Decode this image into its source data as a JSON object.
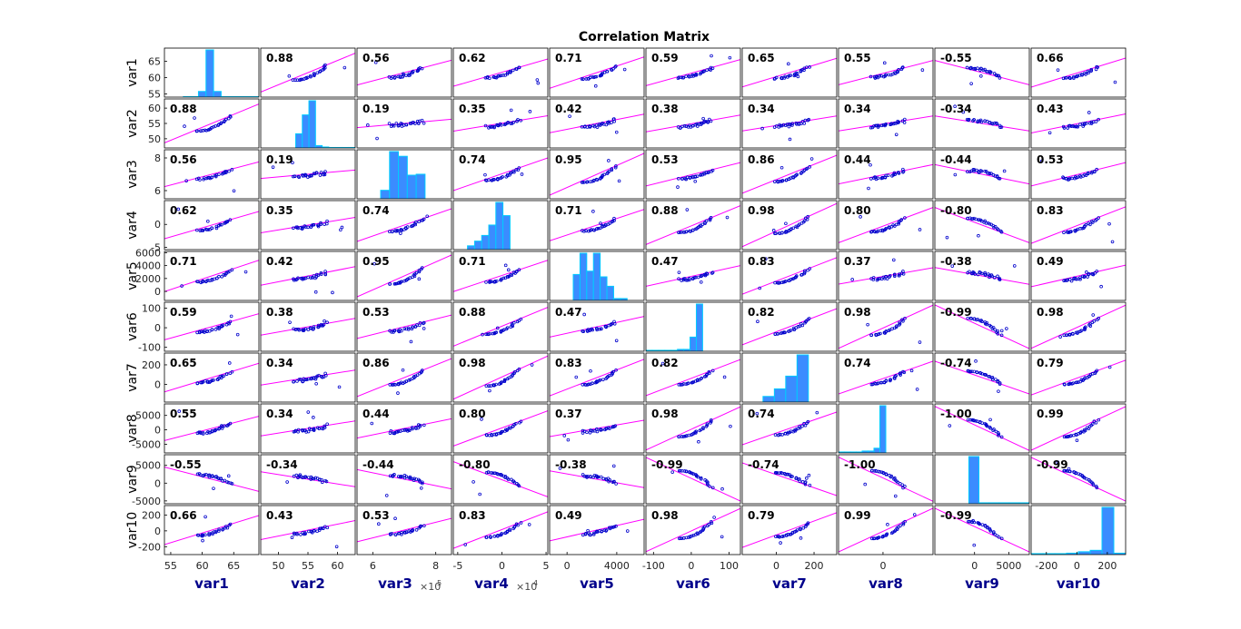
{
  "chart_data": {
    "type": "scatter",
    "title": "Correlation Matrix",
    "variables": [
      "var1",
      "var2",
      "var3",
      "var4",
      "var5",
      "var6",
      "var7",
      "var8",
      "var9",
      "var10"
    ],
    "correlations": [
      [
        1.0,
        0.88,
        0.56,
        0.62,
        0.71,
        0.59,
        0.65,
        0.55,
        -0.55,
        0.66
      ],
      [
        0.88,
        1.0,
        0.19,
        0.35,
        0.42,
        0.38,
        0.34,
        0.34,
        -0.34,
        0.43
      ],
      [
        0.56,
        0.19,
        1.0,
        0.74,
        0.95,
        0.53,
        0.86,
        0.44,
        -0.44,
        0.53
      ],
      [
        0.62,
        0.35,
        0.74,
        1.0,
        0.71,
        0.88,
        0.98,
        0.8,
        -0.8,
        0.83
      ],
      [
        0.71,
        0.42,
        0.95,
        0.71,
        1.0,
        0.47,
        0.83,
        0.37,
        -0.38,
        0.49
      ],
      [
        0.59,
        0.38,
        0.53,
        0.88,
        0.47,
        1.0,
        0.82,
        0.98,
        -0.99,
        0.98
      ],
      [
        0.65,
        0.34,
        0.86,
        0.98,
        0.83,
        0.82,
        1.0,
        0.74,
        -0.74,
        0.79
      ],
      [
        0.55,
        0.34,
        0.44,
        0.8,
        0.37,
        0.98,
        0.74,
        1.0,
        -1.0,
        0.99
      ],
      [
        -0.55,
        -0.34,
        -0.44,
        -0.8,
        -0.38,
        -0.99,
        -0.74,
        -1.0,
        1.0,
        -0.99
      ],
      [
        0.66,
        0.43,
        0.53,
        0.83,
        0.49,
        0.98,
        0.79,
        0.99,
        -0.99,
        1.0
      ]
    ],
    "correlation_labels": [
      [
        "",
        "0.88",
        "0.56",
        "0.62",
        "0.71",
        "0.59",
        "0.65",
        "0.55",
        "-0.55",
        "0.66"
      ],
      [
        "0.88",
        "",
        "0.19",
        "0.35",
        "0.42",
        "0.38",
        "0.34",
        "0.34",
        "-0.34",
        "0.43"
      ],
      [
        "0.56",
        "0.19",
        "",
        "0.74",
        "0.95",
        "0.53",
        "0.86",
        "0.44",
        "-0.44",
        "0.53"
      ],
      [
        "0.62",
        "0.35",
        "0.74",
        "",
        "0.71",
        "0.88",
        "0.98",
        "0.80",
        "-0.80",
        "0.83"
      ],
      [
        "0.71",
        "0.42",
        "0.95",
        "0.71",
        "",
        "0.47",
        "0.83",
        "0.37",
        "-0.38",
        "0.49"
      ],
      [
        "0.59",
        "0.38",
        "0.53",
        "0.88",
        "0.47",
        "",
        "0.82",
        "0.98",
        "-0.99",
        "0.98"
      ],
      [
        "0.65",
        "0.34",
        "0.86",
        "0.98",
        "0.83",
        "0.82",
        "",
        "0.74",
        "-0.74",
        "0.79"
      ],
      [
        "0.55",
        "0.34",
        "0.44",
        "0.80",
        "0.37",
        "0.98",
        "0.74",
        "",
        "-1.00",
        "0.99"
      ],
      [
        "-0.55",
        "-0.34",
        "-0.44",
        "-0.80",
        "-0.38",
        "-0.99",
        "-0.74",
        "-1.00",
        "",
        "-0.99"
      ],
      [
        "0.66",
        "0.43",
        "0.53",
        "0.83",
        "0.49",
        "0.98",
        "0.79",
        "0.99",
        "-0.99",
        ""
      ]
    ],
    "ranges": [
      [
        54,
        69
      ],
      [
        47,
        63
      ],
      [
        550000,
        850000
      ],
      [
        -55000,
        52000
      ],
      [
        -1400,
        6200
      ],
      [
        -120,
        130
      ],
      [
        -180,
        320
      ],
      [
        -8000,
        9000
      ],
      [
        -5800,
        8000
      ],
      [
        -300,
        320
      ]
    ],
    "x_ticks": [
      {
        "values": [
          55,
          60,
          65
        ],
        "labels": [
          "55",
          "60",
          "65"
        ]
      },
      {
        "values": [
          50,
          55,
          60
        ],
        "labels": [
          "50",
          "55",
          "60"
        ]
      },
      {
        "values": [
          600000,
          800000
        ],
        "labels": [
          "6",
          "8"
        ]
      },
      {
        "values": [
          -50000,
          0,
          50000
        ],
        "labels": [
          "-5",
          "0",
          "5"
        ]
      },
      {
        "values": [
          0,
          4000
        ],
        "labels": [
          "0",
          "4000"
        ]
      },
      {
        "values": [
          -100,
          0,
          100
        ],
        "labels": [
          "-100",
          "0",
          "100"
        ]
      },
      {
        "values": [
          0,
          200
        ],
        "labels": [
          "0",
          "200"
        ]
      },
      {
        "values": [
          0
        ],
        "labels": [
          "0"
        ]
      },
      {
        "values": [
          0,
          5000
        ],
        "labels": [
          "0",
          "5000"
        ]
      },
      {
        "values": [
          -200,
          0,
          200
        ],
        "labels": [
          "-200",
          "0",
          "200"
        ]
      }
    ],
    "y_ticks": [
      {
        "values": [
          55,
          60,
          65
        ],
        "labels": [
          "55",
          "60",
          "65"
        ]
      },
      {
        "values": [
          50,
          55,
          60
        ],
        "labels": [
          "50",
          "55",
          "60"
        ]
      },
      {
        "values": [
          600000,
          800000
        ],
        "labels": [
          "6",
          "8"
        ]
      },
      {
        "values": [
          -50000,
          0
        ],
        "labels": [
          "-5",
          "0"
        ]
      },
      {
        "values": [
          0,
          2000,
          4000,
          6000
        ],
        "labels": [
          "0",
          "2000",
          "4000",
          "6000"
        ]
      },
      {
        "values": [
          -100,
          0,
          100
        ],
        "labels": [
          "-100",
          "0",
          "100"
        ]
      },
      {
        "values": [
          0,
          200
        ],
        "labels": [
          "0",
          "200"
        ]
      },
      {
        "values": [
          -5000,
          0,
          5000
        ],
        "labels": [
          "-5000",
          "0",
          "5000"
        ]
      },
      {
        "values": [
          -5000,
          0,
          5000
        ],
        "labels": [
          "-5000",
          "0",
          "5000"
        ]
      },
      {
        "values": [
          -200,
          0,
          200
        ],
        "labels": [
          "-200",
          "0",
          "200"
        ]
      }
    ],
    "x_exponents": [
      "",
      "",
      "×10",
      "×10",
      "",
      "",
      "",
      "",
      "",
      ""
    ],
    "x_exponent_powers": [
      "",
      "",
      "5",
      "4",
      "",
      "",
      "",
      "",
      "",
      ""
    ],
    "histogram_bins": [
      [
        0.01,
        0.01,
        0.12,
        1.0,
        0.12,
        0.01,
        0.01,
        0.01,
        0.01,
        0.01
      ],
      [
        0.0,
        0.3,
        0.7,
        1.0,
        0.05,
        0.02,
        0.01,
        0.01,
        0.01,
        0.01
      ],
      [
        0.18,
        1.0,
        0.9,
        0.5,
        0.52
      ],
      [
        0.08,
        0.18,
        0.3,
        0.52,
        1.0,
        0.72
      ],
      [
        0.55,
        1.0,
        0.62,
        1.0,
        0.5,
        0.3,
        0.04,
        0.04
      ],
      [
        0.02,
        0.02,
        0.02,
        0.02,
        0.02,
        0.04,
        0.04,
        0.3,
        1.0
      ],
      [
        0.12,
        0.28,
        0.55,
        1.0
      ],
      [
        0.02,
        0.02,
        0.02,
        0.02,
        0.04,
        0.04,
        0.1,
        1.0
      ],
      [
        1.0,
        0.02,
        0.02,
        0.02,
        0.02,
        0.02
      ],
      [
        0.02,
        0.02,
        0.02,
        0.03,
        0.06,
        0.09,
        1.0,
        0.03
      ]
    ],
    "grid": false,
    "colors": {
      "marker": "#0000cc",
      "fit_line": "#ff00ff",
      "histogram": "#3b8cff",
      "histogram_edge": "#00ccff",
      "axis_label": "#00008b",
      "text": "#000000"
    }
  }
}
